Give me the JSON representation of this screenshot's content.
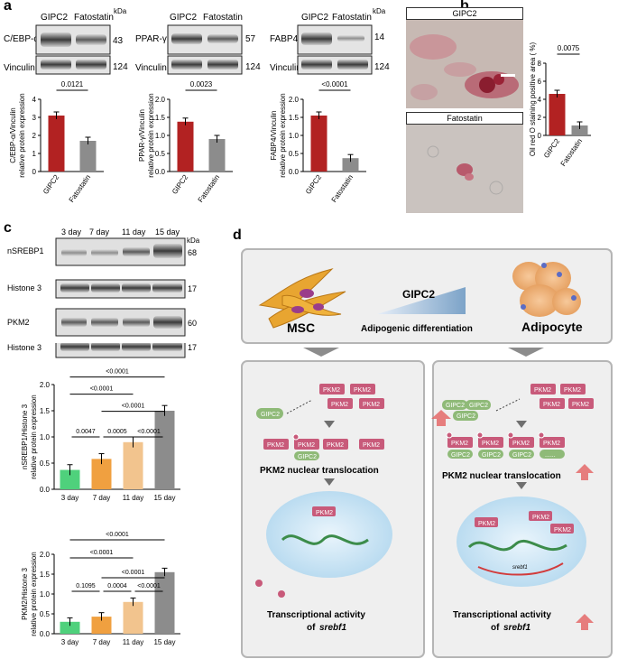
{
  "panels": {
    "a": "a",
    "b": "b",
    "c": "c",
    "d": "d"
  },
  "blots_a": [
    {
      "cond1": "GIPC2",
      "cond2": "Fatostatin",
      "target": "C/EBP-α",
      "kda": "43",
      "ctrl": "Vinculin",
      "ctrl_kda": "124",
      "kda_label": "kDa"
    },
    {
      "cond1": "GIPC2",
      "cond2": "Fatostatin",
      "target": "PPAR-γ",
      "kda": "57",
      "ctrl": "Vinculin",
      "ctrl_kda": "124",
      "kda_label": "kDa"
    },
    {
      "cond1": "GIPC2",
      "cond2": "Fatostatin",
      "target": "FABP4",
      "kda": "14",
      "ctrl": "Vinculin",
      "ctrl_kda": "124",
      "kda_label": "kDa"
    }
  ],
  "blots_c": {
    "days": [
      "3 day",
      "7 day",
      "11 day",
      "15 day"
    ],
    "kda_label": "kDa",
    "rows": [
      {
        "name": "nSREBP1",
        "kda": "68"
      },
      {
        "name": "Histone 3",
        "kda": "17"
      },
      {
        "name": "PKM2",
        "kda": "60"
      },
      {
        "name": "Histone 3",
        "kda": "17"
      }
    ]
  },
  "micrographs_b": {
    "top": "GIPC2",
    "bottom": "Fatostatin"
  },
  "chart_data": [
    {
      "type": "bar",
      "categories": [
        "GIPC2",
        "Fatostatin"
      ],
      "values": [
        3.1,
        1.7
      ],
      "ylabel": "C/EBP-α/Vinculin relative protein expression",
      "ylim": [
        0,
        4
      ],
      "yticks": [
        "0",
        "1",
        "2",
        "3",
        "4"
      ],
      "pvalues": [
        "0.0121"
      ],
      "colors": [
        "#b22222",
        "#8c8c8c"
      ]
    },
    {
      "type": "bar",
      "categories": [
        "GIPC2",
        "Fatostatin"
      ],
      "values": [
        1.38,
        0.9
      ],
      "ylabel": "PPAR-γ/Vinculin relative protein expression",
      "ylim": [
        0,
        2
      ],
      "yticks": [
        "0.0",
        "0.5",
        "1.0",
        "1.5",
        "2.0"
      ],
      "pvalues": [
        "0.0023"
      ],
      "colors": [
        "#b22222",
        "#8c8c8c"
      ]
    },
    {
      "type": "bar",
      "categories": [
        "GIPC2",
        "Fatostatin"
      ],
      "values": [
        1.55,
        0.37
      ],
      "ylabel": "FABP4/Vinculin relative protein expression",
      "ylim": [
        0,
        2
      ],
      "yticks": [
        "0.0",
        "0.5",
        "1.0",
        "1.5",
        "2.0"
      ],
      "pvalues": [
        "<0.0001"
      ],
      "colors": [
        "#b22222",
        "#8c8c8c"
      ]
    },
    {
      "type": "bar",
      "categories": [
        "GIPC2",
        "Fatostatin"
      ],
      "values": [
        4.6,
        1.1
      ],
      "ylabel": "Oil red O staining positive area ( %)",
      "ylim": [
        0,
        8
      ],
      "yticks": [
        "0",
        "2",
        "4",
        "6",
        "8"
      ],
      "pvalues": [
        "0.0075"
      ],
      "colors": [
        "#b22222",
        "#8c8c8c"
      ]
    },
    {
      "type": "bar",
      "categories": [
        "3 day",
        "7 day",
        "11 day",
        "15 day"
      ],
      "values": [
        0.37,
        0.58,
        0.9,
        1.5
      ],
      "ylabel": "nSREBP1/Histone 3 relative protein expression",
      "ylim": [
        0,
        2
      ],
      "yticks": [
        "0.0",
        "0.5",
        "1.0",
        "1.5",
        "2.0"
      ],
      "pvalues": [
        "<0.0001",
        "<0.0001",
        "<0.0001",
        "0.0047",
        "0.0005",
        "<0.0001"
      ],
      "colors": [
        "#4fd17c",
        "#f0a040",
        "#f2c48e",
        "#8c8c8c"
      ]
    },
    {
      "type": "bar",
      "categories": [
        "3 day",
        "7 day",
        "11 day",
        "15 day"
      ],
      "values": [
        0.3,
        0.43,
        0.8,
        1.55
      ],
      "ylabel": "PKM2/Histone 3 relative protein expression",
      "ylim": [
        0,
        2
      ],
      "yticks": [
        "0.0",
        "0.5",
        "1.0",
        "1.5",
        "2.0"
      ],
      "pvalues": [
        "<0.0001",
        "<0.0001",
        "<0.0001",
        "0.1095",
        "0.0004",
        "<0.0001"
      ],
      "colors": [
        "#4fd17c",
        "#f0a040",
        "#f2c48e",
        "#8c8c8c"
      ]
    }
  ],
  "diagram": {
    "msc": "MSC",
    "adipocyte": "Adipocyte",
    "gipc2": "GIPC2",
    "adipogenic": "Adipogenic differentiation",
    "pkm2": "PKM2",
    "dots": "......",
    "translocation": "PKM2 nuclear translocation",
    "transcription_line1": "Transcriptional activity",
    "transcription_of": "of",
    "transcription_gene": "srebf1",
    "chromatin_gene": "srebf1",
    "colors": {
      "panel_bg": "#efefef",
      "panel_border": "#b5b5b5",
      "pkm2": "#c85a7a",
      "gipc2": "#8fba78",
      "up_arrow": "#e46060"
    }
  }
}
